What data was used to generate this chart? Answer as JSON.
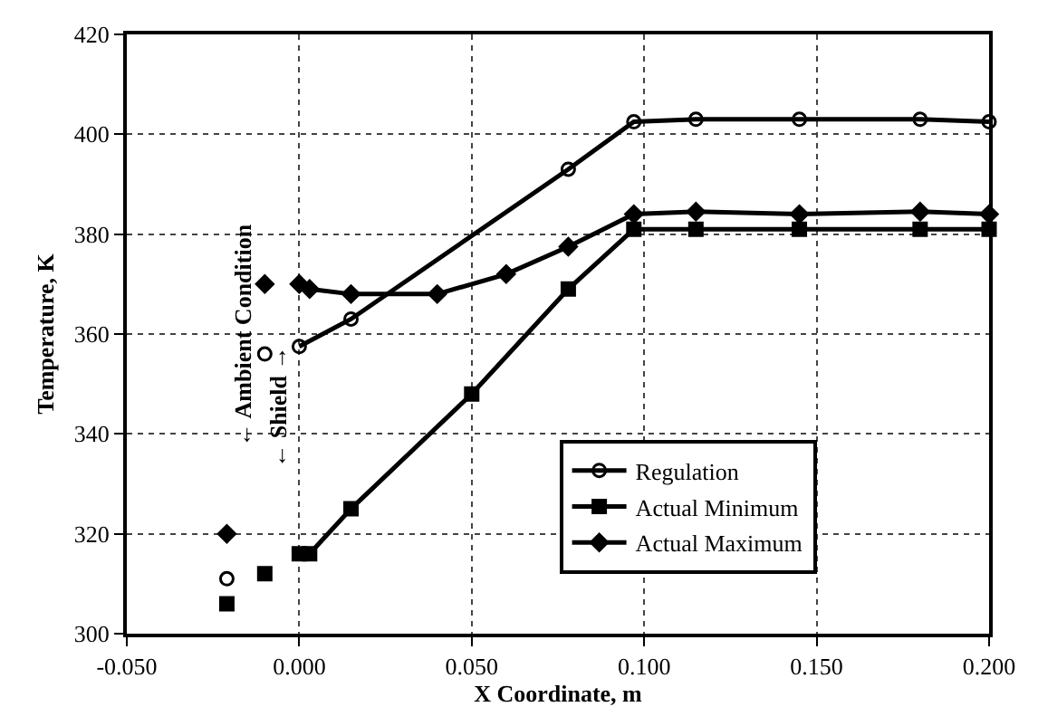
{
  "chart_data": {
    "type": "line",
    "xlabel": "X Coordinate, m",
    "ylabel": "Temperature, K",
    "xlim": [
      -0.05,
      0.2
    ],
    "xticks": [
      {
        "value": -0.05,
        "label": "-0.050"
      },
      {
        "value": 0,
        "label": "0.000"
      },
      {
        "value": 0.05,
        "label": "0.050"
      },
      {
        "value": 0.1,
        "label": "0.100"
      },
      {
        "value": 0.15,
        "label": "0.150"
      },
      {
        "value": 0.2,
        "label": "0.200"
      }
    ],
    "ylim": [
      300,
      420
    ],
    "yticks": [
      300,
      320,
      340,
      360,
      380,
      400,
      420
    ],
    "grid": true,
    "legend": "bottom right",
    "series": [
      {
        "name": "Regulation",
        "color": "#000000",
        "marker": "circle",
        "x": [
          0,
          0.015,
          0.078,
          0.097,
          0.115,
          0.145,
          0.18,
          0.2
        ],
        "values": [
          357.5,
          363,
          393,
          402.5,
          403,
          403,
          403,
          402.5
        ]
      },
      {
        "name": "Actual Minimum",
        "color": "#000000",
        "marker": "square",
        "x": [
          0,
          0.003,
          0.015,
          0.05,
          0.078,
          0.097,
          0.115,
          0.145,
          0.18,
          0.2
        ],
        "values": [
          316,
          316,
          325,
          348,
          369,
          381,
          381,
          381,
          381,
          381
        ]
      },
      {
        "name": "Actual Maximum",
        "color": "#000000",
        "marker": "diamond",
        "x": [
          0,
          0.003,
          0.015,
          0.04,
          0.06,
          0.078,
          0.097,
          0.115,
          0.145,
          0.18,
          0.2
        ],
        "values": [
          370,
          369,
          368,
          368,
          372,
          377.5,
          384,
          384.5,
          384,
          384.5,
          384
        ]
      },
      {
        "type": "scatter",
        "color": "#000000",
        "marker": "circle",
        "x": [
          -0.021,
          -0.01
        ],
        "values": [
          311,
          356
        ]
      },
      {
        "type": "scatter",
        "color": "#000000",
        "marker": "square",
        "x": [
          -0.021,
          -0.01
        ],
        "values": [
          306,
          312
        ]
      },
      {
        "type": "scatter",
        "color": "#000000",
        "marker": "diamond",
        "x": [
          -0.021,
          -0.01
        ],
        "values": [
          320,
          370
        ]
      }
    ],
    "annotations": [
      "← Ambient Condition",
      "← Shield →"
    ]
  }
}
